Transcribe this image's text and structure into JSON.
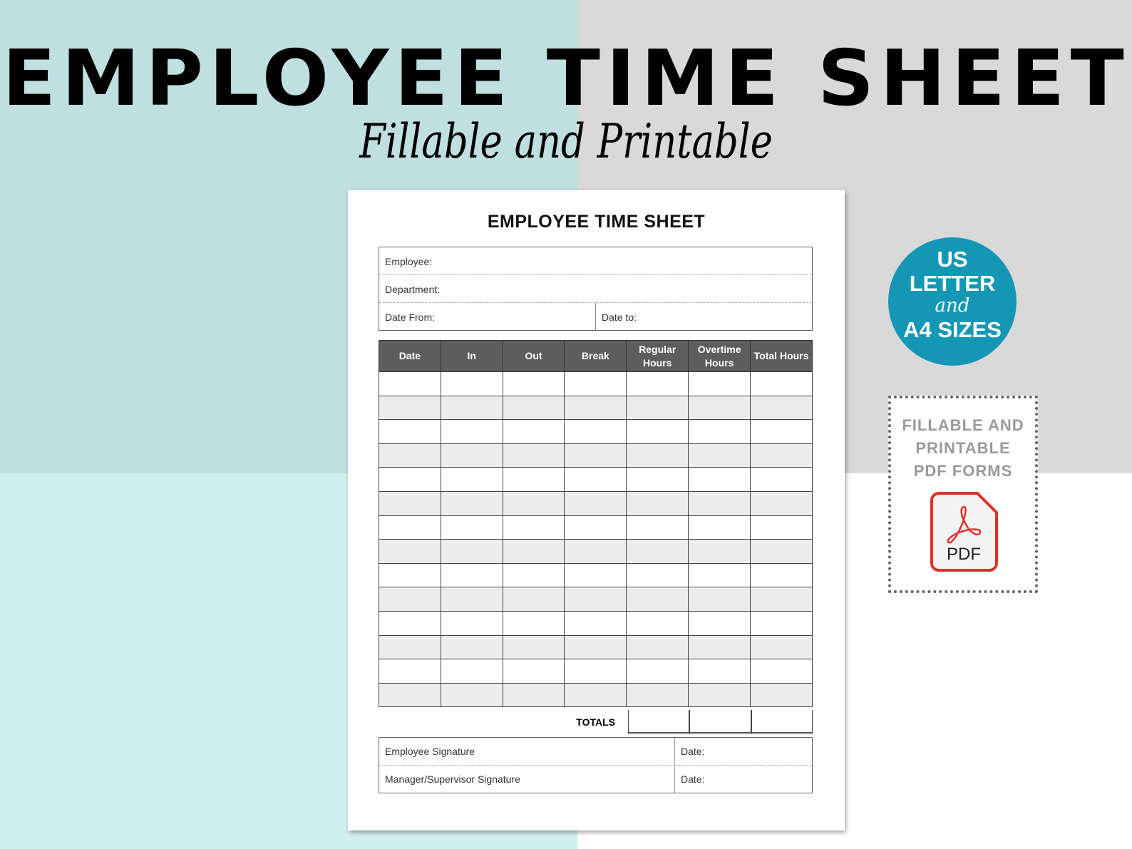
{
  "banner": {
    "title": "EMPLOYEE TIME SHEET",
    "subtitle": "Fillable and Printable"
  },
  "form": {
    "title": "EMPLOYEE TIME SHEET",
    "fields": {
      "employee": "Employee:",
      "department": "Department:",
      "date_from": "Date From:",
      "date_to": "Date to:"
    },
    "columns": [
      "Date",
      "In",
      "Out",
      "Break",
      "Regular Hours",
      "Overtime Hours",
      "Total Hours"
    ],
    "totals_label": "TOTALS",
    "signatures": {
      "employee": "Employee Signature",
      "manager": "Manager/Supervisor Signature",
      "date1": "Date:",
      "date2": "Date:"
    }
  },
  "badge": {
    "line1": "US",
    "line2": "LETTER",
    "line3": "and",
    "line4": "A4 SIZES",
    "color": "#1497b4"
  },
  "pdf_box": {
    "line1": "FILLABLE  AND",
    "line2": "PRINTABLE",
    "line3": "PDF FORMS",
    "icon_label": "PDF",
    "icon": "pdf-file-icon",
    "icon_color": "#e0302a"
  },
  "colors": {
    "teal_top": "#bfdfe0",
    "teal_bottom": "#d0efee",
    "gray": "#d9d9d9",
    "header": "#5d5d5d"
  }
}
